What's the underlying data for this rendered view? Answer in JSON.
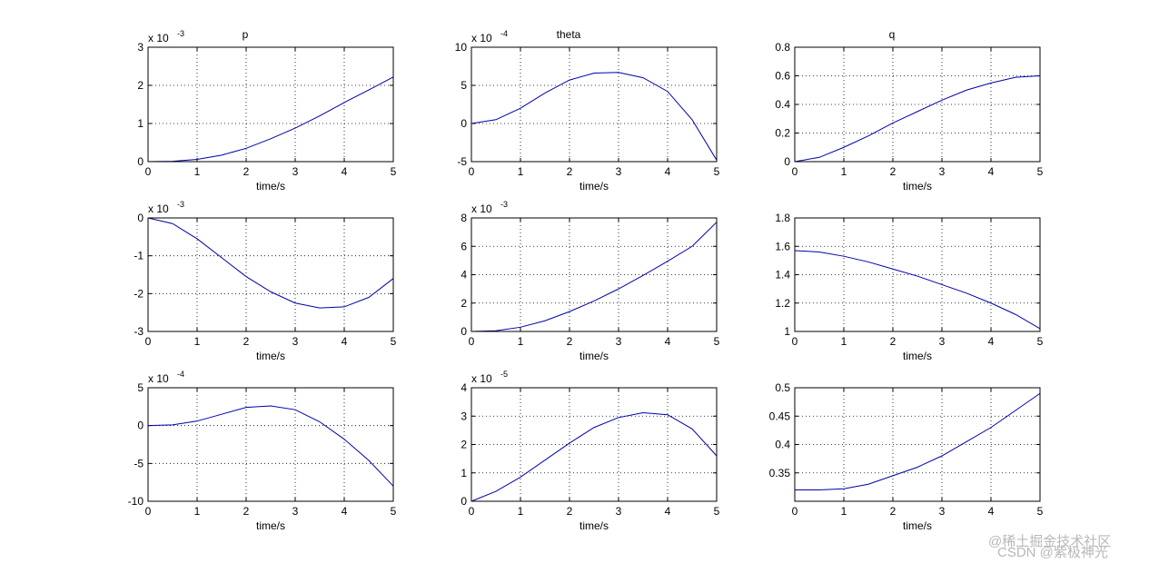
{
  "chart_data": [
    {
      "type": "line",
      "title": "p",
      "xlabel": "time/s",
      "scale_label": {
        "base": "x 10",
        "exponent": "-3"
      },
      "x": [
        0,
        0.5,
        1,
        1.5,
        2,
        2.5,
        3,
        3.5,
        4,
        4.5,
        5
      ],
      "xlim": [
        0,
        5
      ],
      "xticks": [
        0,
        1,
        2,
        3,
        4,
        5
      ],
      "ylim": [
        0,
        3
      ],
      "yticks": [
        0,
        1,
        2,
        3
      ],
      "grid": true,
      "series": [
        {
          "color": "#0000a8",
          "values": [
            0,
            0.01,
            0.06,
            0.17,
            0.35,
            0.6,
            0.88,
            1.2,
            1.55,
            1.88,
            2.22
          ]
        }
      ]
    },
    {
      "type": "line",
      "title": "theta",
      "xlabel": "time/s",
      "scale_label": {
        "base": "x 10",
        "exponent": "-4"
      },
      "x": [
        0,
        0.5,
        1,
        1.5,
        2,
        2.5,
        3,
        3.5,
        4,
        4.5,
        5
      ],
      "xlim": [
        0,
        5
      ],
      "xticks": [
        0,
        1,
        2,
        3,
        4,
        5
      ],
      "ylim": [
        -5,
        10
      ],
      "yticks": [
        -5,
        0,
        5,
        10
      ],
      "grid": true,
      "series": [
        {
          "color": "#0000a8",
          "values": [
            0,
            0.5,
            2.0,
            4.0,
            5.7,
            6.6,
            6.7,
            6.0,
            4.2,
            0.5,
            -4.8
          ]
        }
      ]
    },
    {
      "type": "line",
      "title": "q",
      "xlabel": "time/s",
      "x": [
        0,
        0.5,
        1,
        1.5,
        2,
        2.5,
        3,
        3.5,
        4,
        4.5,
        5
      ],
      "xlim": [
        0,
        5
      ],
      "xticks": [
        0,
        1,
        2,
        3,
        4,
        5
      ],
      "ylim": [
        0,
        0.8
      ],
      "yticks": [
        0,
        0.2,
        0.4,
        0.6,
        0.8
      ],
      "grid": true,
      "series": [
        {
          "color": "#0000a8",
          "values": [
            0,
            0.03,
            0.1,
            0.18,
            0.27,
            0.35,
            0.43,
            0.5,
            0.55,
            0.59,
            0.6
          ]
        }
      ]
    },
    {
      "type": "line",
      "xlabel": "time/s",
      "scale_label": {
        "base": "x 10",
        "exponent": "-3"
      },
      "x": [
        0,
        0.5,
        1,
        1.5,
        2,
        2.5,
        3,
        3.5,
        4,
        4.5,
        5
      ],
      "xlim": [
        0,
        5
      ],
      "xticks": [
        0,
        1,
        2,
        3,
        4,
        5
      ],
      "ylim": [
        -3,
        0
      ],
      "yticks": [
        -3,
        -2,
        -1,
        0
      ],
      "grid": true,
      "series": [
        {
          "color": "#0000a8",
          "values": [
            0,
            -0.15,
            -0.55,
            -1.05,
            -1.55,
            -1.95,
            -2.25,
            -2.38,
            -2.35,
            -2.1,
            -1.6
          ]
        }
      ]
    },
    {
      "type": "line",
      "xlabel": "time/s",
      "scale_label": {
        "base": "x 10",
        "exponent": "-3"
      },
      "x": [
        0,
        0.5,
        1,
        1.5,
        2,
        2.5,
        3,
        3.5,
        4,
        4.5,
        5
      ],
      "xlim": [
        0,
        5
      ],
      "xticks": [
        0,
        1,
        2,
        3,
        4,
        5
      ],
      "ylim": [
        0,
        8
      ],
      "yticks": [
        0,
        2,
        4,
        6,
        8
      ],
      "grid": true,
      "series": [
        {
          "color": "#0000a8",
          "values": [
            0,
            0.05,
            0.3,
            0.75,
            1.4,
            2.15,
            3.0,
            3.95,
            4.95,
            6.0,
            7.7
          ]
        }
      ]
    },
    {
      "type": "line",
      "xlabel": "time/s",
      "x": [
        0,
        0.5,
        1,
        1.5,
        2,
        2.5,
        3,
        3.5,
        4,
        4.5,
        5
      ],
      "xlim": [
        0,
        5
      ],
      "xticks": [
        0,
        1,
        2,
        3,
        4,
        5
      ],
      "ylim": [
        1,
        1.8
      ],
      "yticks": [
        1,
        1.2,
        1.4,
        1.6,
        1.8
      ],
      "grid": true,
      "series": [
        {
          "color": "#0000a8",
          "values": [
            1.57,
            1.56,
            1.53,
            1.49,
            1.44,
            1.39,
            1.33,
            1.27,
            1.2,
            1.12,
            1.02
          ]
        }
      ]
    },
    {
      "type": "line",
      "xlabel": "time/s",
      "scale_label": {
        "base": "x 10",
        "exponent": "-4"
      },
      "x": [
        0,
        0.5,
        1,
        1.5,
        2,
        2.5,
        3,
        3.5,
        4,
        4.5,
        5
      ],
      "xlim": [
        0,
        5
      ],
      "xticks": [
        0,
        1,
        2,
        3,
        4,
        5
      ],
      "ylim": [
        -10,
        5
      ],
      "yticks": [
        -10,
        -5,
        0,
        5
      ],
      "grid": true,
      "series": [
        {
          "color": "#0000a8",
          "values": [
            0,
            0.1,
            0.6,
            1.5,
            2.4,
            2.6,
            2.1,
            0.5,
            -1.8,
            -4.6,
            -8.0
          ]
        }
      ]
    },
    {
      "type": "line",
      "xlabel": "time/s",
      "scale_label": {
        "base": "x 10",
        "exponent": "-5"
      },
      "x": [
        0,
        0.5,
        1,
        1.5,
        2,
        2.5,
        3,
        3.5,
        4,
        4.5,
        5
      ],
      "xlim": [
        0,
        5
      ],
      "xticks": [
        0,
        1,
        2,
        3,
        4,
        5
      ],
      "ylim": [
        0,
        4
      ],
      "yticks": [
        0,
        1,
        2,
        3,
        4
      ],
      "grid": true,
      "series": [
        {
          "color": "#0000a8",
          "values": [
            0,
            0.35,
            0.85,
            1.45,
            2.05,
            2.6,
            2.95,
            3.12,
            3.05,
            2.55,
            1.6
          ]
        }
      ]
    },
    {
      "type": "line",
      "xlabel": "time/s",
      "x": [
        0,
        0.5,
        1,
        1.5,
        2,
        2.5,
        3,
        3.5,
        4,
        4.5,
        5
      ],
      "xlim": [
        0,
        5
      ],
      "xticks": [
        0,
        1,
        2,
        3,
        4,
        5
      ],
      "ylim": [
        0.3,
        0.5
      ],
      "yticks": [
        0.35,
        0.4,
        0.45,
        0.5
      ],
      "grid": true,
      "series": [
        {
          "color": "#0000a8",
          "values": [
            0.32,
            0.32,
            0.322,
            0.33,
            0.345,
            0.36,
            0.38,
            0.405,
            0.43,
            0.46,
            0.49
          ]
        }
      ]
    }
  ],
  "watermark": [
    "@稀土掘金技术社区",
    "CSDN @紫极神光"
  ]
}
